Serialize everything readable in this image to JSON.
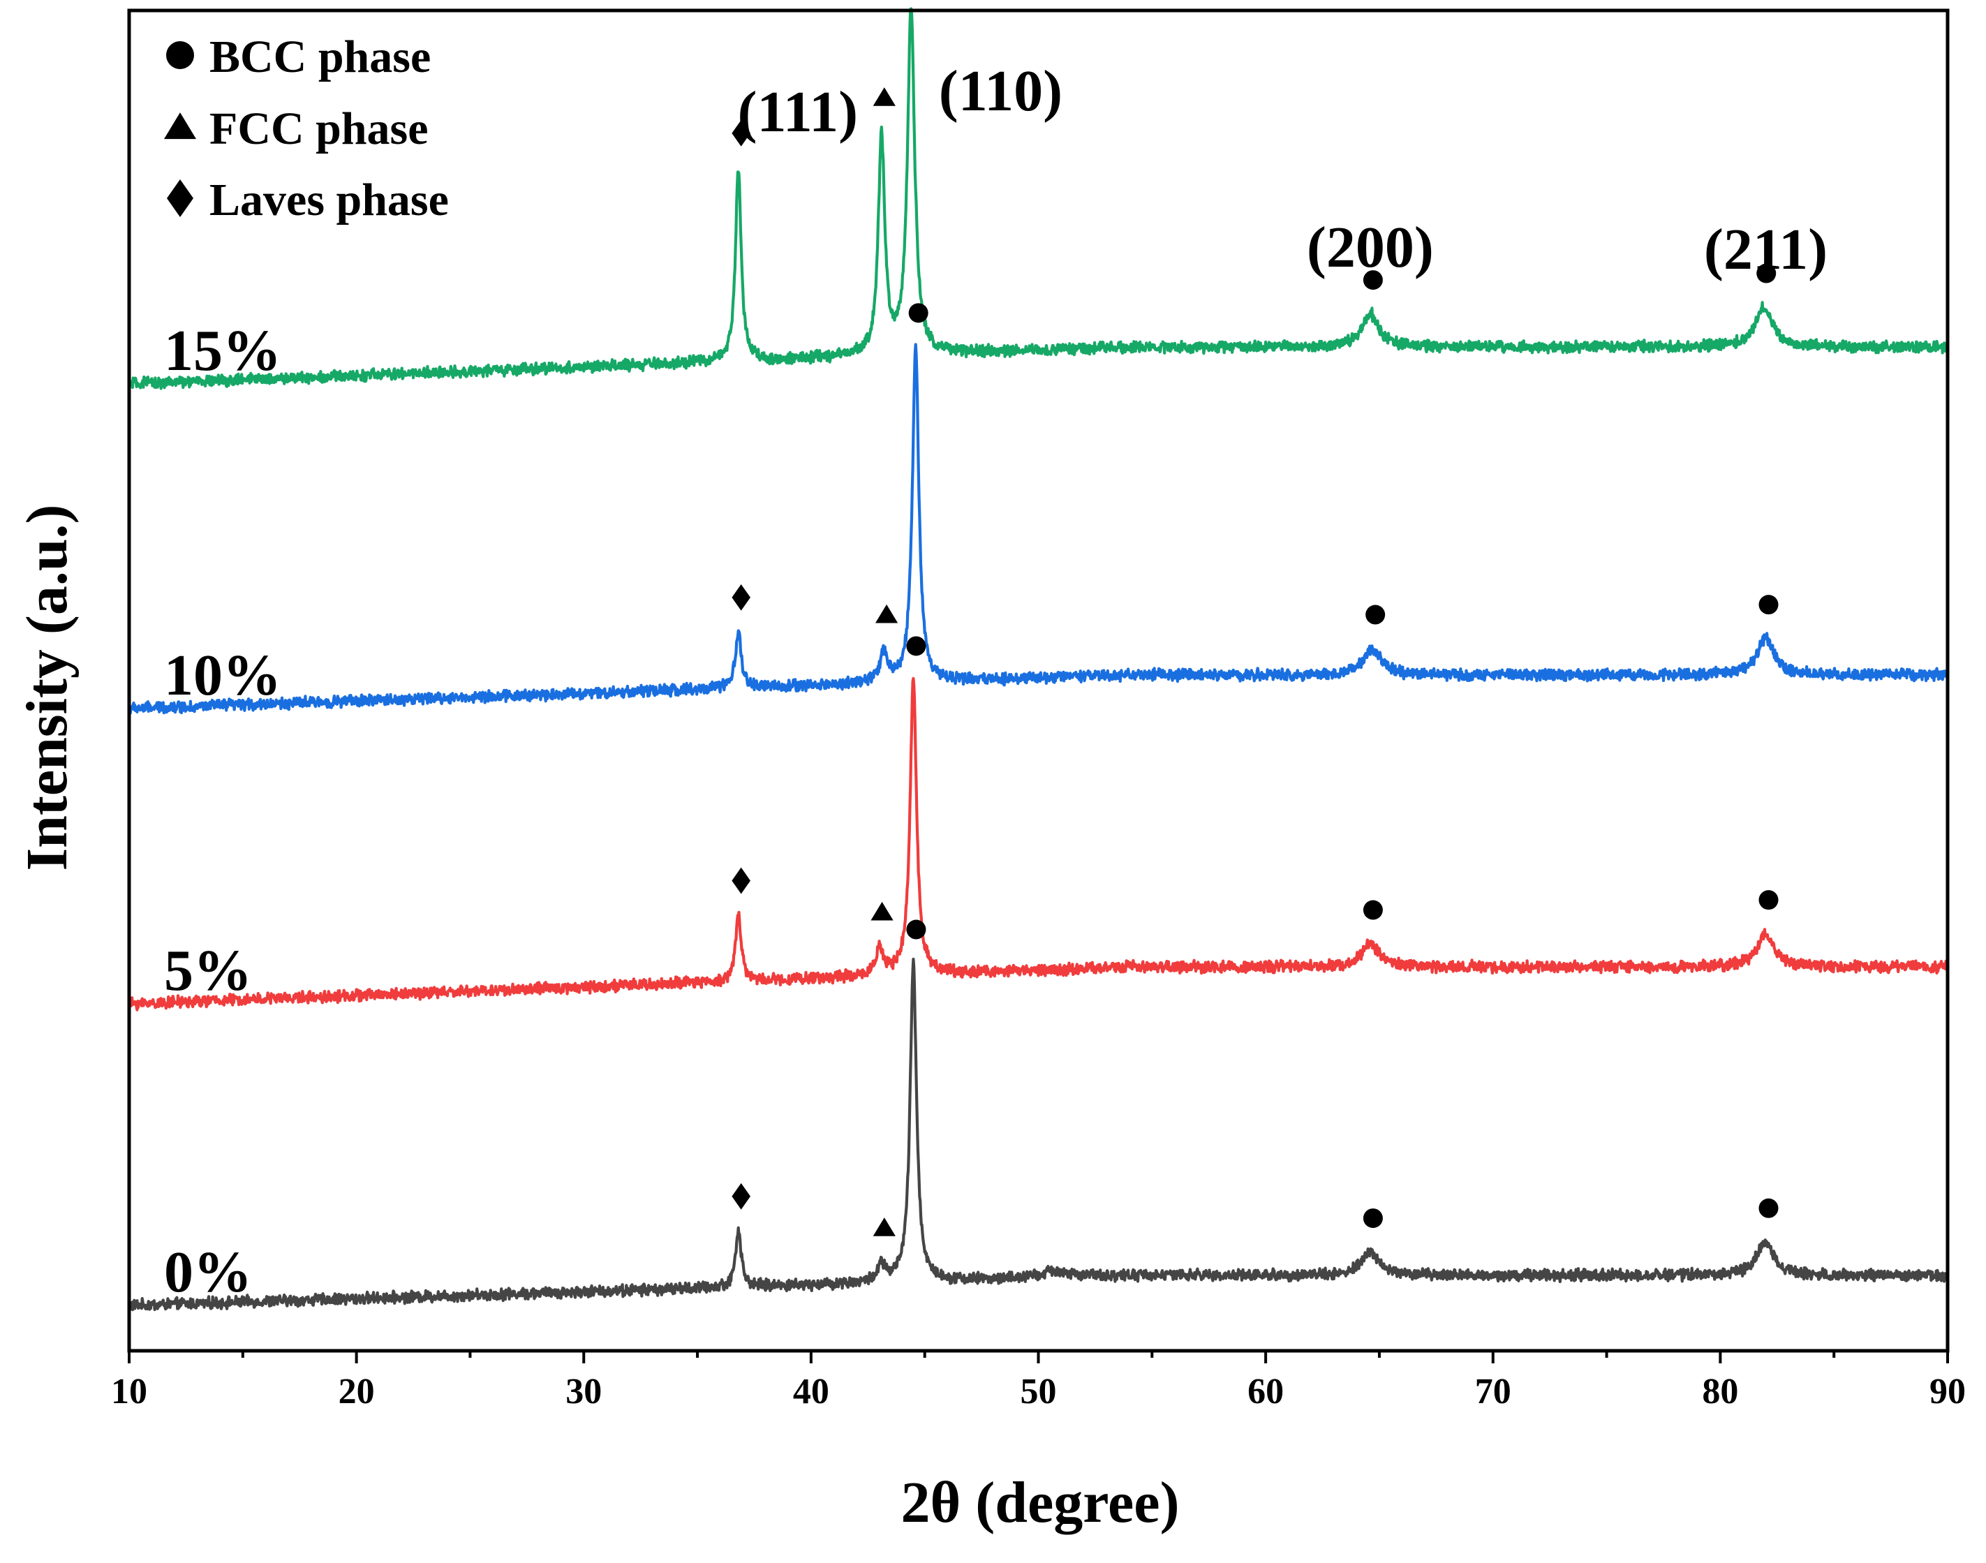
{
  "chart_data": {
    "type": "line",
    "title": "",
    "xlabel": "2θ (degree)",
    "ylabel": "Intensity (a.u.)",
    "xlim": [
      10,
      90
    ],
    "xticks": [
      10,
      20,
      30,
      40,
      50,
      60,
      70,
      80,
      90
    ],
    "yticks_shown": false,
    "legend": {
      "position": "top-left",
      "entries": [
        {
          "marker": "circle",
          "label": "BCC phase"
        },
        {
          "marker": "triangle",
          "label": "FCC phase"
        },
        {
          "marker": "diamond",
          "label": "Laves phase"
        }
      ]
    },
    "series": [
      {
        "name": "0%",
        "color": "#454545",
        "baseline_start": 0.0,
        "baseline_end": 0.09,
        "peaks": [
          {
            "x": 36.8,
            "height": 0.17,
            "width": 0.15,
            "phase": "diamond"
          },
          {
            "x": 43.1,
            "height": 0.05,
            "width": 0.2,
            "phase": "triangle"
          },
          {
            "x": 44.5,
            "height": 0.95,
            "width": 0.17,
            "phase": "circle"
          },
          {
            "x": 50.7,
            "height": 0.02,
            "width": 0.6,
            "phase": ""
          },
          {
            "x": 64.6,
            "height": 0.07,
            "width": 0.45,
            "phase": "circle"
          },
          {
            "x": 82.0,
            "height": 0.1,
            "width": 0.45,
            "phase": "circle"
          }
        ]
      },
      {
        "name": "5%",
        "color": "#f03c3c",
        "baseline_start": 0.0,
        "baseline_end": 0.11,
        "peaks": [
          {
            "x": 36.8,
            "height": 0.2,
            "width": 0.15,
            "phase": "diamond"
          },
          {
            "x": 43.0,
            "height": 0.08,
            "width": 0.2,
            "phase": "triangle"
          },
          {
            "x": 44.5,
            "height": 0.88,
            "width": 0.17,
            "phase": "circle"
          },
          {
            "x": 64.6,
            "height": 0.07,
            "width": 0.45,
            "phase": "circle"
          },
          {
            "x": 82.0,
            "height": 0.1,
            "width": 0.45,
            "phase": "circle"
          }
        ]
      },
      {
        "name": "10%",
        "color": "#1a6fe0",
        "baseline_start": 0.0,
        "baseline_end": 0.1,
        "peaks": [
          {
            "x": 36.8,
            "height": 0.17,
            "width": 0.15,
            "phase": "diamond"
          },
          {
            "x": 43.2,
            "height": 0.09,
            "width": 0.2,
            "phase": "triangle"
          },
          {
            "x": 44.6,
            "height": 1.0,
            "width": 0.17,
            "phase": "circle"
          },
          {
            "x": 64.7,
            "height": 0.08,
            "width": 0.45,
            "phase": "circle"
          },
          {
            "x": 82.0,
            "height": 0.11,
            "width": 0.45,
            "phase": "circle"
          }
        ]
      },
      {
        "name": "15%",
        "color": "#16a866",
        "baseline_start": 0.0,
        "baseline_end": 0.11,
        "peaks": [
          {
            "x": 36.8,
            "height": 0.58,
            "width": 0.15,
            "phase": "diamond"
          },
          {
            "x": 43.1,
            "height": 0.65,
            "width": 0.17,
            "phase": "triangle"
          },
          {
            "x": 44.4,
            "height": 1.03,
            "width": 0.19,
            "phase": "circle"
          },
          {
            "x": 64.6,
            "height": 0.1,
            "width": 0.45,
            "phase": "circle"
          },
          {
            "x": 81.9,
            "height": 0.12,
            "width": 0.45,
            "phase": "circle"
          }
        ]
      }
    ],
    "plane_annotations": [
      {
        "label": "(111)",
        "x": 43.1
      },
      {
        "label": "(110)",
        "x": 44.5
      },
      {
        "label": "(200)",
        "x": 64.6
      },
      {
        "label": "(211)",
        "x": 82.0
      }
    ]
  }
}
